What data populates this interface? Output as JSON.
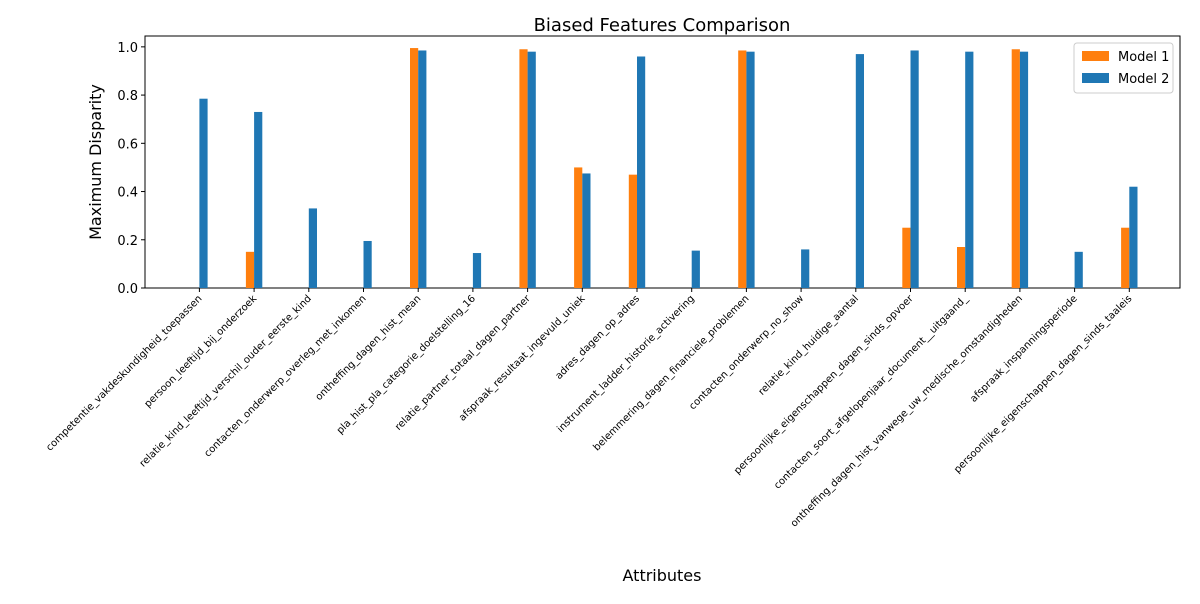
{
  "chart_data": {
    "type": "bar",
    "title": "Biased Features Comparison",
    "xlabel": "Attributes",
    "ylabel": "Maximum Disparity",
    "ylim": [
      0,
      1.045
    ],
    "yticks": [
      0.0,
      0.2,
      0.4,
      0.6,
      0.8,
      1.0
    ],
    "grid": false,
    "legend_position": "top-right",
    "categories": [
      "competentie_vakdeskundigheid_toepassen",
      "persoon_leeftijd_bij_onderzoek",
      "relatie_kind_leeftijd_verschil_ouder_eerste_kind",
      "contacten_onderwerp_overleg_met_inkomen",
      "ontheffing_dagen_hist_mean",
      "pla_hist_pla_categorie_doelstelling_16",
      "relatie_partner_totaal_dagen_partner",
      "afspraak_resultaat_ingevuld_uniek",
      "adres_dagen_op_adres",
      "instrument_ladder_historie_activering",
      "belemmering_dagen_financiele_problemen",
      "contacten_onderwerp_no_show",
      "relatie_kind_huidige_aantal",
      "persoonlijke_eigenschappen_dagen_sinds_opvoer",
      "contacten_soort_afgelopenjaar_document__uitgaand_",
      "ontheffing_dagen_hist_vanwege_uw_medische_omstandigheden",
      "afspraak_inspanningsperiode",
      "persoonlijke_eigenschappen_dagen_sinds_taaleis"
    ],
    "series": [
      {
        "name": "Model 1",
        "color": "#ff7f0e",
        "values": [
          0,
          0.15,
          0,
          0,
          0.995,
          0,
          0.99,
          0.5,
          0.47,
          0,
          0.985,
          0,
          0,
          0.25,
          0.17,
          0.99,
          0,
          0.25
        ]
      },
      {
        "name": "Model 2",
        "color": "#1f77b4",
        "values": [
          0.785,
          0.73,
          0.33,
          0.195,
          0.985,
          0.145,
          0.98,
          0.475,
          0.96,
          0.155,
          0.98,
          0.16,
          0.97,
          0.985,
          0.98,
          0.98,
          0.15,
          0.42
        ]
      }
    ]
  }
}
